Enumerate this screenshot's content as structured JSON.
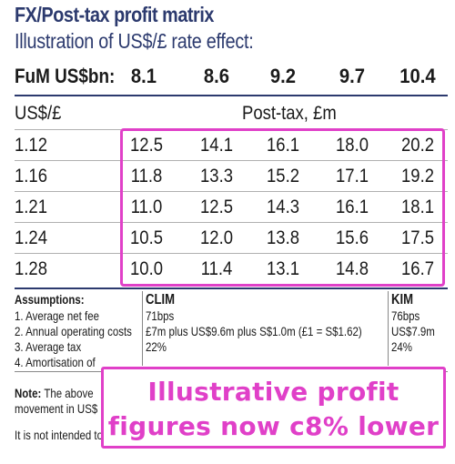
{
  "title": "FX/Post-tax profit matrix",
  "subtitle": "Illustration of US$/£ rate effect:",
  "fum": {
    "label": "FuM US$bn:",
    "values": [
      "8.1",
      "8.6",
      "9.2",
      "9.7",
      "10.4"
    ]
  },
  "table": {
    "row_header": "US$/£",
    "col_header": "Post-tax, £m",
    "rows": [
      {
        "rate": "1.12",
        "values": [
          "12.5",
          "14.1",
          "16.1",
          "18.0",
          "20.2"
        ]
      },
      {
        "rate": "1.16",
        "values": [
          "11.8",
          "13.3",
          "15.2",
          "17.1",
          "19.2"
        ]
      },
      {
        "rate": "1.21",
        "values": [
          "11.0",
          "12.5",
          "14.3",
          "16.1",
          "18.1"
        ]
      },
      {
        "rate": "1.24",
        "values": [
          "10.5",
          "12.0",
          "13.8",
          "15.6",
          "17.5"
        ]
      },
      {
        "rate": "1.28",
        "values": [
          "10.0",
          "11.4",
          "13.1",
          "14.8",
          "16.7"
        ]
      }
    ]
  },
  "assumptions": {
    "heading": "Assumptions:",
    "items": [
      "1. Average net fee",
      "2. Annual operating costs",
      "3. Average tax",
      "4. Amortisation of"
    ],
    "clim": {
      "heading": "CLIM",
      "values": [
        "71bps",
        "£7m plus US$9.6m plus S$1.0m (£1 = S$1.62)",
        "22%"
      ]
    },
    "kim": {
      "heading": "KIM",
      "values": [
        "76bps",
        "US$7.9m",
        "24%"
      ]
    }
  },
  "note": {
    "label": "Note:",
    "line1": "The above",
    "line2": "movement in US$",
    "line3": "It is not intended to"
  },
  "callout": {
    "line1": "Illustrative profit",
    "line2": "figures now c8% lower"
  },
  "colors": {
    "title": "#2c3a6e",
    "highlight": "#e040c8"
  }
}
